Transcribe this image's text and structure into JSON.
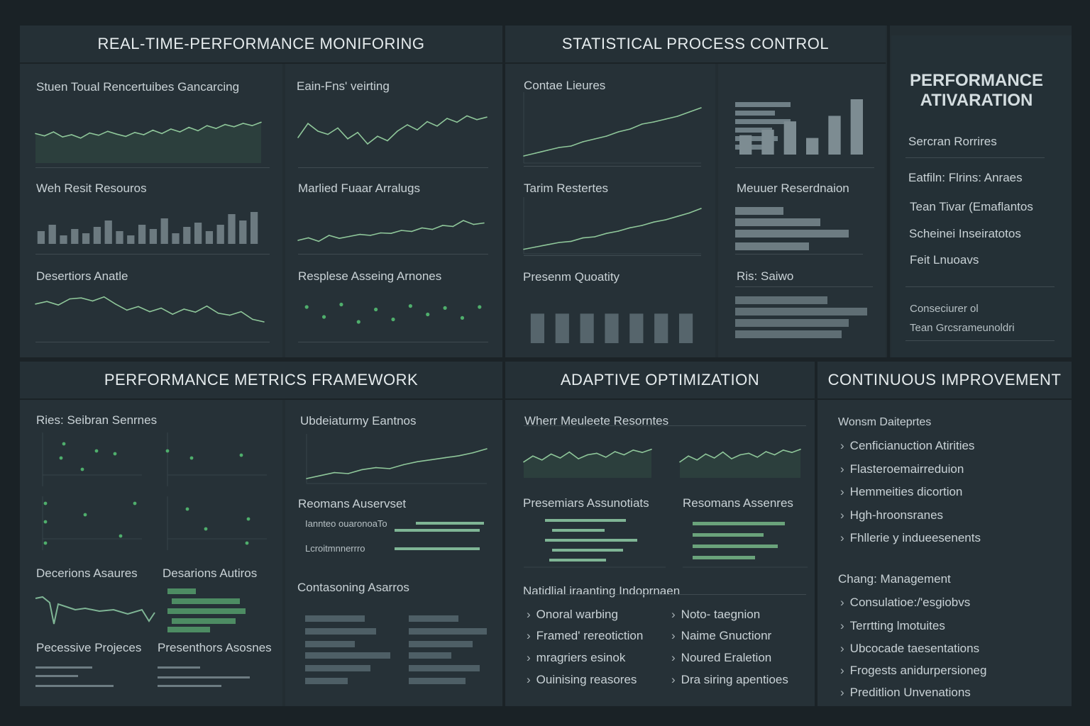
{
  "sections": {
    "realtime": {
      "title": "REAL-TIME-PERFORMANCE MONIFORING",
      "panels": [
        "Stuen Toual Rencertuibes Gancarcing",
        "Eain-Fns' veirting",
        "Weh Resit Resouros",
        "Marlied Fuaar Arralugs",
        "Desertiors Anatle",
        "Resplese Asseing Arnones"
      ]
    },
    "spc": {
      "title": "STATISTICAL PROCESS CONTROL",
      "panels": [
        "Contae Lieures",
        "Tarim Restertes",
        "Presenm Quoatity",
        "Meuuer Reserdnaion",
        "Ris: Saiwo"
      ]
    },
    "activation": {
      "title_line1": "PERFORMANCE",
      "title_line2": "ATIVARATION",
      "items": [
        "Sercran Rorrires",
        "Eatfiln: Flrins: Anraes",
        "Tean Tivar (Emaflantos",
        "Scheinei Inseiratotos",
        "Feit Lnuoavs"
      ],
      "footer_line1": "Conseciurer ol",
      "footer_line2": "Tean Grcsrameunoldri"
    },
    "metrics": {
      "title": "PERFORMANCE METRICS FRAMEWORK",
      "panels": [
        "Ries: Seibran Senrnes",
        "Ubdeiaturmy Eantnos",
        "Reomans Auservset",
        "Decerions Asaures",
        "Desarions Autiros",
        "Contasoning Asarros",
        "Pecessive Projeces",
        "Presenthors Asosnes"
      ],
      "tiny": [
        "Iannteo ouaronoaTo",
        "Lcroitmnnerrro"
      ]
    },
    "adaptive": {
      "title": "ADAPTIVE OPTIMIZATION",
      "panels": [
        "Wherr Meuleete Resorntes",
        "Presemiars Assunotiats",
        "Resomans Assenres",
        "Natidlial iraanting Indoprnaen"
      ],
      "list_left": [
        "Onoral warbing",
        "Framed' rereotiction",
        "mragriers esinok",
        "Ouinising reasores"
      ],
      "list_right": [
        "Noto- taegnion",
        "Naime Gnuctionr",
        "Noured Eraletion",
        "Dra siring apentioes"
      ]
    },
    "continuous": {
      "title": "CONTINUOUS IMPROVEMENT",
      "group1_title": "Wonsm Daiteprtes",
      "group1": [
        "Cenficianuction Atirities",
        "Flasteroemairreduion",
        "Hemmeities dicortion",
        "Hgh-hroonsranes",
        "Fhllerie y indueesenents"
      ],
      "group2_title": "Chang: Management",
      "group2": [
        "Consulatioe:/'esgiobvs",
        "Terrtting lmotuites",
        "Ubcocade taesentations",
        "Frogests anidurpersioneg",
        "Preditlion Unvenations"
      ]
    }
  },
  "chart_data": [
    {
      "type": "line",
      "name": "Stuen Toual Rencertuibes Gancarcing",
      "values": [
        52,
        48,
        55,
        46,
        50,
        44,
        53,
        49,
        56,
        51,
        47,
        54,
        50,
        58,
        52,
        60,
        55,
        63,
        57,
        66,
        61,
        68,
        64,
        70,
        66,
        72
      ],
      "ylim": [
        0,
        100
      ]
    },
    {
      "type": "line",
      "name": "Eain-Fns' veirting",
      "values": [
        40,
        62,
        50,
        45,
        55,
        38,
        48,
        30,
        42,
        35,
        50,
        60,
        52,
        65,
        58,
        70,
        64,
        74,
        68,
        72
      ],
      "ylim": [
        0,
        100
      ]
    },
    {
      "type": "bar",
      "name": "Weh Resit Resouros",
      "values": [
        30,
        45,
        20,
        35,
        25,
        40,
        55,
        30,
        20,
        45,
        35,
        60,
        25,
        40,
        50,
        30,
        45,
        70,
        55,
        75
      ],
      "ylim": [
        0,
        100
      ]
    },
    {
      "type": "line",
      "name": "Marlied Fuaar Arralugs",
      "values": [
        30,
        35,
        28,
        40,
        34,
        38,
        42,
        40,
        45,
        44,
        50,
        48,
        55,
        52,
        60,
        58,
        70,
        62,
        65
      ],
      "ylim": [
        0,
        100
      ]
    },
    {
      "type": "line",
      "name": "Desertiors Anatle",
      "values": [
        60,
        65,
        58,
        70,
        72,
        66,
        74,
        60,
        48,
        55,
        45,
        52,
        40,
        50,
        44,
        56,
        42,
        38,
        45,
        30,
        25
      ],
      "ylim": [
        0,
        100
      ]
    },
    {
      "type": "scatter",
      "name": "Resplese Asseing Arnones",
      "x": [
        1,
        3,
        5,
        7,
        9,
        11,
        13,
        15,
        17,
        19,
        21
      ],
      "values": [
        60,
        40,
        65,
        30,
        55,
        35,
        62,
        45,
        58,
        38,
        60
      ],
      "ylim": [
        0,
        100
      ]
    },
    {
      "type": "line",
      "name": "Contae Lieures",
      "values": [
        10,
        14,
        18,
        22,
        24,
        30,
        34,
        38,
        44,
        48,
        55,
        58,
        62,
        66,
        72,
        78
      ],
      "ylim": [
        0,
        100
      ]
    },
    {
      "type": "line",
      "name": "Tarim Restertes",
      "values": [
        8,
        12,
        16,
        20,
        22,
        28,
        30,
        36,
        40,
        46,
        50,
        56,
        60,
        66,
        72,
        80
      ],
      "ylim": [
        0,
        100
      ]
    },
    {
      "type": "bar",
      "name": "Presenm Quoatity",
      "values": [
        80,
        80,
        80,
        80,
        80,
        80,
        80
      ],
      "ylim": [
        0,
        100
      ]
    },
    {
      "type": "bar",
      "name": "SPC side bars",
      "values": [
        35,
        45,
        60,
        30,
        70,
        100
      ],
      "ylim": [
        0,
        100
      ]
    },
    {
      "type": "line",
      "name": "Ubdeiaturmy Eantnos",
      "values": [
        10,
        16,
        22,
        20,
        28,
        32,
        30,
        38,
        44,
        48,
        52,
        56,
        62,
        70
      ],
      "ylim": [
        0,
        100
      ]
    },
    {
      "type": "line",
      "name": "Wherr Meuleete Resorntes",
      "values": [
        40,
        55,
        45,
        60,
        50,
        65,
        48,
        58,
        62,
        52,
        66,
        58,
        70,
        64,
        72
      ],
      "ylim": [
        0,
        100
      ]
    }
  ]
}
